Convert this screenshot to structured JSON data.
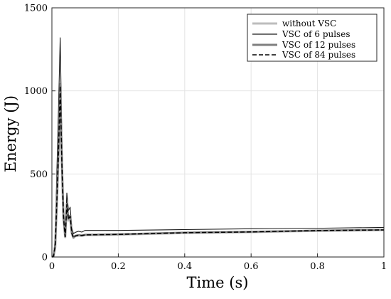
{
  "chart_data": {
    "type": "line",
    "xlabel": "Time (s)",
    "ylabel": "Energy (J)",
    "xlim": [
      0,
      1
    ],
    "ylim": [
      0,
      1500
    ],
    "xticks": [
      "0",
      "0.2",
      "0.4",
      "0.6",
      "0.8",
      "1"
    ],
    "yticks": [
      "0",
      "500",
      "1000",
      "1500"
    ],
    "grid": true,
    "legend_position": "top-right",
    "colors": {
      "without_vsc": "#bdbdbd",
      "vsc_6": "#1a1a1a",
      "vsc_12": "#7f7f7f",
      "vsc_84": "#000000"
    },
    "series": [
      {
        "name": "without VSC",
        "x": [
          0,
          0.005,
          0.01,
          0.015,
          0.02,
          0.025,
          0.03,
          0.035,
          0.04,
          0.045,
          0.05,
          0.055,
          0.06,
          0.065,
          0.07,
          0.08,
          0.09,
          0.1,
          0.2,
          0.4,
          0.6,
          0.8,
          1.0
        ],
        "values": [
          0,
          5,
          60,
          320,
          620,
          1000,
          560,
          230,
          120,
          310,
          220,
          240,
          140,
          115,
          125,
          130,
          128,
          132,
          135,
          145,
          150,
          158,
          162
        ]
      },
      {
        "name": "VSC of 6 pulses",
        "x": [
          0,
          0.005,
          0.01,
          0.015,
          0.02,
          0.025,
          0.03,
          0.035,
          0.04,
          0.045,
          0.05,
          0.055,
          0.06,
          0.065,
          0.07,
          0.08,
          0.09,
          0.1,
          0.2,
          0.4,
          0.6,
          0.8,
          1.0
        ],
        "values": [
          0,
          10,
          110,
          520,
          900,
          1320,
          720,
          290,
          150,
          385,
          280,
          300,
          175,
          140,
          148,
          155,
          150,
          160,
          160,
          165,
          170,
          173,
          178
        ]
      },
      {
        "name": "VSC of 12 pulses",
        "x": [
          0,
          0.005,
          0.01,
          0.015,
          0.02,
          0.025,
          0.03,
          0.035,
          0.04,
          0.045,
          0.05,
          0.055,
          0.06,
          0.065,
          0.07,
          0.08,
          0.09,
          0.1,
          0.2,
          0.4,
          0.6,
          0.8,
          1.0
        ],
        "values": [
          0,
          6,
          70,
          350,
          650,
          1040,
          580,
          240,
          125,
          320,
          230,
          250,
          145,
          118,
          128,
          132,
          130,
          134,
          137,
          147,
          152,
          159,
          164
        ]
      },
      {
        "name": "VSC of 84 pulses",
        "x": [
          0,
          0.005,
          0.01,
          0.015,
          0.02,
          0.025,
          0.03,
          0.035,
          0.04,
          0.045,
          0.05,
          0.055,
          0.06,
          0.065,
          0.07,
          0.08,
          0.09,
          0.1,
          0.2,
          0.4,
          0.6,
          0.8,
          1.0
        ],
        "values": [
          0,
          6,
          68,
          340,
          640,
          1030,
          570,
          236,
          122,
          315,
          226,
          246,
          142,
          116,
          126,
          131,
          129,
          133,
          136,
          146,
          151,
          159,
          163
        ]
      }
    ]
  }
}
